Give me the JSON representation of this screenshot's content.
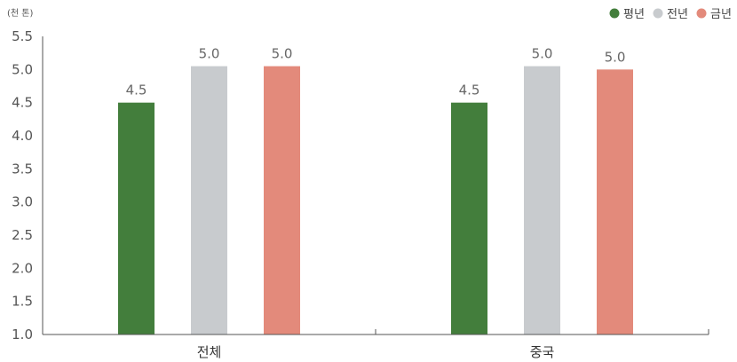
{
  "chart_data": {
    "type": "bar",
    "unit_label": "(천 톤)",
    "categories": [
      "전체",
      "중국"
    ],
    "series": [
      {
        "name": "평년",
        "color": "#437e3c",
        "values": [
          4.5,
          4.5
        ],
        "labels": [
          "4.5",
          "4.5"
        ]
      },
      {
        "name": "전년",
        "color": "#c8cbce",
        "values": [
          5.05,
          5.05
        ],
        "labels": [
          "5.0",
          "5.0"
        ]
      },
      {
        "name": "금년",
        "color": "#e38a7b",
        "values": [
          5.05,
          5.0
        ],
        "labels": [
          "5.0",
          "5.0"
        ]
      }
    ],
    "ylim": [
      1.0,
      5.5
    ],
    "yticks": [
      "1.0",
      "1.5",
      "2.0",
      "2.5",
      "3.0",
      "3.5",
      "4.0",
      "4.5",
      "5.0",
      "5.5"
    ],
    "legend_position": "top-right",
    "grid": false
  }
}
